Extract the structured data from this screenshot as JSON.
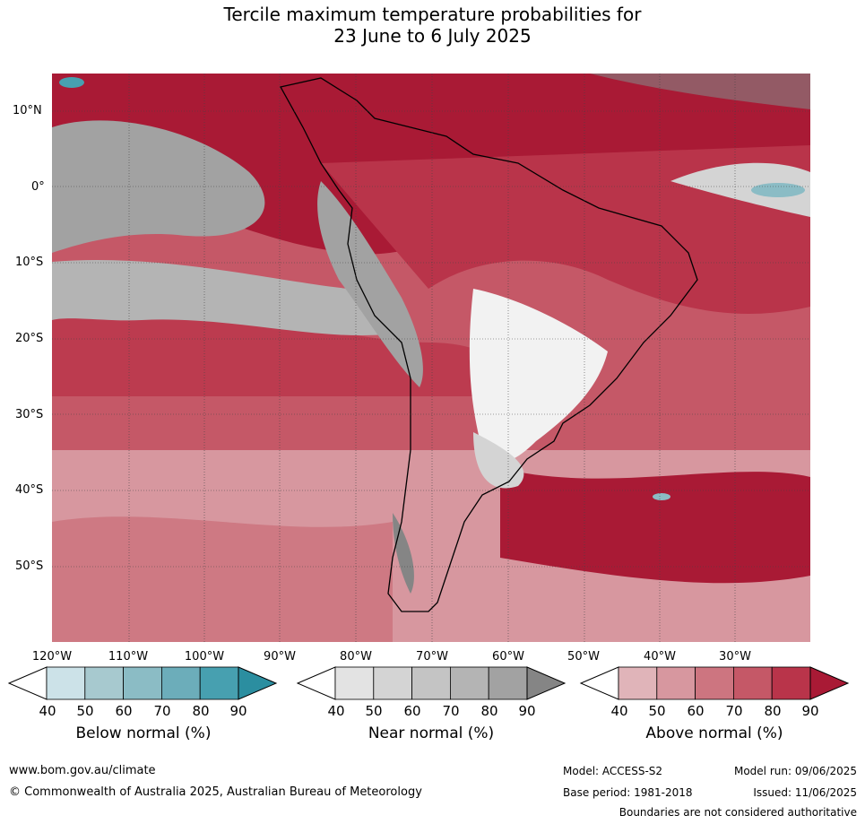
{
  "title": {
    "line1": "Tercile maximum temperature probabilities for",
    "line2": "23 June to 6 July 2025"
  },
  "map": {
    "lat_labels": [
      "10°N",
      "0°",
      "10°S",
      "20°S",
      "30°S",
      "40°S",
      "50°S"
    ],
    "lon_labels": [
      "120°W",
      "110°W",
      "100°W",
      "90°W",
      "80°W",
      "70°W",
      "60°W",
      "50°W",
      "40°W",
      "30°W"
    ]
  },
  "legends": [
    {
      "label": "Below normal (%)",
      "ticks": [
        "40",
        "50",
        "60",
        "70",
        "80",
        "90"
      ],
      "colors": [
        "#cce2e8",
        "#a7c9cf",
        "#8bbcc5",
        "#6cadba",
        "#47a0b0",
        "#2b8ea0"
      ]
    },
    {
      "label": "Near normal (%)",
      "ticks": [
        "40",
        "50",
        "60",
        "70",
        "80",
        "90"
      ],
      "colors": [
        "#e3e3e3",
        "#d4d4d4",
        "#c4c4c4",
        "#b4b4b4",
        "#a2a2a2",
        "#858585"
      ]
    },
    {
      "label": "Above normal (%)",
      "ticks": [
        "40",
        "50",
        "60",
        "70",
        "80",
        "90"
      ],
      "colors": [
        "#e0b4b9",
        "#d7979f",
        "#cd7580",
        "#c55867",
        "#b9344a",
        "#a91a35"
      ]
    }
  ],
  "footer": {
    "website": "www.bom.gov.au/climate",
    "copyright": "© Commonwealth of Australia 2025, Australian Bureau of Meteorology",
    "model": "Model: ACCESS-S2",
    "base_period": "Base period: 1981-2018",
    "model_run": "Model run: 09/06/2025",
    "issued": "Issued: 11/06/2025",
    "disclaimer": "Boundaries are not considered authoritative"
  }
}
